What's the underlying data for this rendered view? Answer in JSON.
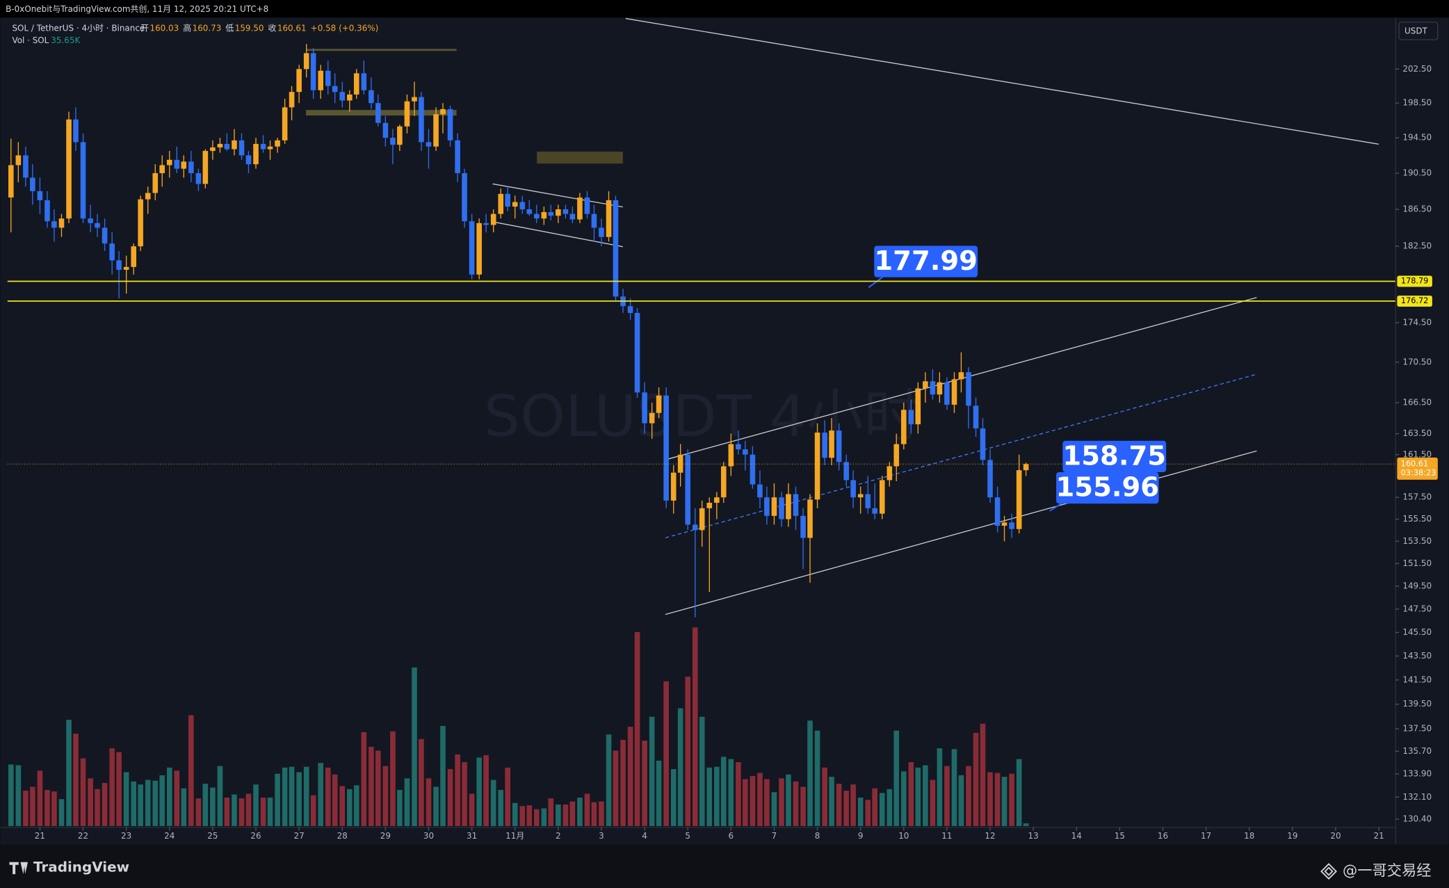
{
  "header": {
    "title": "B-0xOnebit与TradingView.com共创, 11月 12, 2025 20:21 UTC+8",
    "symbol": "SOL / TetherUS · 4小时 · Binance",
    "ohlc": [
      {
        "k": "开",
        "v": "160.03"
      },
      {
        "k": "高",
        "v": "160.73"
      },
      {
        "k": "低",
        "v": "159.50"
      },
      {
        "k": "收",
        "v": "160.61"
      }
    ],
    "change": "+0.58 (+0.36%)",
    "vol_name": "Vol · SOL",
    "vol_value": "35.65K",
    "currency": "USDT",
    "brand": "TradingView",
    "author": "@一哥交易经"
  },
  "chart_data": {
    "type": "candlestick",
    "watermark": "SOLUSDT 4小时",
    "log": true,
    "grid": false,
    "up_color": "#f5a623",
    "down_color": "#2f6ff0",
    "vol_up_color": "#1f6b68",
    "vol_down_color": "#8a2c37",
    "xlim": [
      -0.75,
      31.38
    ],
    "ylim": [
      129.8,
      208.6
    ],
    "xticks": [
      {
        "value": 0,
        "label": "21"
      },
      {
        "value": 1,
        "label": "22"
      },
      {
        "value": 2,
        "label": "23"
      },
      {
        "value": 3,
        "label": "24"
      },
      {
        "value": 4,
        "label": "25"
      },
      {
        "value": 5,
        "label": "26"
      },
      {
        "value": 6,
        "label": "27"
      },
      {
        "value": 7,
        "label": "28"
      },
      {
        "value": 8,
        "label": "29"
      },
      {
        "value": 9,
        "label": "30"
      },
      {
        "value": 10,
        "label": "31"
      },
      {
        "value": 11,
        "label": "11月"
      },
      {
        "value": 12,
        "label": "2"
      },
      {
        "value": 13,
        "label": "3"
      },
      {
        "value": 14,
        "label": "4"
      },
      {
        "value": 15,
        "label": "5"
      },
      {
        "value": 16,
        "label": "6"
      },
      {
        "value": 17,
        "label": "7"
      },
      {
        "value": 18,
        "label": "8"
      },
      {
        "value": 19,
        "label": "9"
      },
      {
        "value": 20,
        "label": "10"
      },
      {
        "value": 21,
        "label": "11"
      },
      {
        "value": 22,
        "label": "12"
      },
      {
        "value": 23,
        "label": "13"
      },
      {
        "value": 24,
        "label": "14"
      },
      {
        "value": 25,
        "label": "15"
      },
      {
        "value": 26,
        "label": "16"
      },
      {
        "value": 27,
        "label": "17"
      },
      {
        "value": 28,
        "label": "18"
      },
      {
        "value": 29,
        "label": "19"
      },
      {
        "value": 30,
        "label": "20"
      },
      {
        "value": 31,
        "label": "21"
      }
    ],
    "yticks": [
      {
        "value": 202.5,
        "label": "202.50"
      },
      {
        "value": 198.5,
        "label": "198.50"
      },
      {
        "value": 194.5,
        "label": "194.50"
      },
      {
        "value": 190.5,
        "label": "190.50"
      },
      {
        "value": 186.5,
        "label": "186.50"
      },
      {
        "value": 182.5,
        "label": "182.50"
      },
      {
        "value": 174.5,
        "label": "174.50"
      },
      {
        "value": 170.5,
        "label": "170.50"
      },
      {
        "value": 166.5,
        "label": "166.50"
      },
      {
        "value": 163.5,
        "label": "163.50"
      },
      {
        "value": 161.5,
        "label": "161.50"
      },
      {
        "value": 157.5,
        "label": "157.50"
      },
      {
        "value": 155.5,
        "label": "155.50"
      },
      {
        "value": 153.5,
        "label": "153.50"
      },
      {
        "value": 151.5,
        "label": "151.50"
      },
      {
        "value": 149.5,
        "label": "149.50"
      },
      {
        "value": 147.5,
        "label": "147.50"
      },
      {
        "value": 145.5,
        "label": "145.50"
      },
      {
        "value": 143.5,
        "label": "143.50"
      },
      {
        "value": 141.5,
        "label": "141.50"
      },
      {
        "value": 139.5,
        "label": "139.50"
      },
      {
        "value": 137.5,
        "label": "137.50"
      },
      {
        "value": 135.7,
        "label": "135.70"
      },
      {
        "value": 133.9,
        "label": "133.90"
      },
      {
        "value": 132.1,
        "label": "132.10"
      },
      {
        "value": 130.4,
        "label": "130.40"
      }
    ],
    "hlines": [
      {
        "value": 178.79,
        "color": "#f2e418"
      },
      {
        "value": 176.72,
        "color": "#f2e418"
      }
    ],
    "last_price": {
      "value": 160.61,
      "countdown": "03:38:23",
      "color": "#f5a623"
    },
    "callouts": [
      177.99,
      158.75,
      155.96
    ],
    "x": [
      -0.67,
      -0.5,
      -0.33,
      -0.17,
      0,
      0.17,
      0.33,
      0.5,
      0.67,
      0.83,
      1,
      1.17,
      1.33,
      1.5,
      1.67,
      1.83,
      2,
      2.17,
      2.33,
      2.5,
      2.67,
      2.83,
      3,
      3.17,
      3.33,
      3.5,
      3.67,
      3.83,
      4,
      4.17,
      4.33,
      4.5,
      4.67,
      4.83,
      5,
      5.17,
      5.33,
      5.5,
      5.67,
      5.83,
      6,
      6.17,
      6.33,
      6.5,
      6.67,
      6.83,
      7,
      7.17,
      7.33,
      7.5,
      7.67,
      7.83,
      8,
      8.17,
      8.33,
      8.5,
      8.67,
      8.83,
      9,
      9.17,
      9.33,
      9.5,
      9.67,
      9.83,
      10,
      10.17,
      10.33,
      10.5,
      10.67,
      10.83,
      11,
      11.17,
      11.33,
      11.5,
      11.67,
      11.83,
      12,
      12.17,
      12.33,
      12.5,
      12.67,
      12.83,
      13,
      13.17,
      13.33,
      13.5,
      13.67,
      13.83,
      14,
      14.17,
      14.33,
      14.5,
      14.67,
      14.83,
      15,
      15.17,
      15.33,
      15.5,
      15.67,
      15.83,
      16,
      16.17,
      16.33,
      16.5,
      16.67,
      16.83,
      17,
      17.17,
      17.33,
      17.5,
      17.67,
      17.83,
      18,
      18.17,
      18.33,
      18.5,
      18.67,
      18.83,
      19,
      19.17,
      19.33,
      19.5,
      19.67,
      19.83,
      20,
      20.17,
      20.33,
      20.5,
      20.67,
      20.83,
      21,
      21.17,
      21.33,
      21.5,
      21.67,
      21.83,
      22,
      22.17,
      22.33,
      22.5,
      22.67,
      22.83
    ],
    "open": [
      187.8,
      191.4,
      192.5,
      190,
      188.5,
      187.5,
      185.2,
      184.5,
      185.5,
      196.6,
      194,
      185.5,
      185,
      184.5,
      182.8,
      181,
      180,
      180.3,
      182.5,
      187.6,
      188.3,
      190.5,
      191.4,
      192,
      191,
      191.8,
      190.5,
      189.3,
      193,
      193.4,
      193.8,
      193.2,
      194.2,
      192.5,
      191.5,
      193.8,
      193.2,
      193.5,
      194.2,
      198,
      199.8,
      202.5,
      204.4,
      200,
      202.3,
      200.5,
      199.8,
      198.8,
      199.5,
      202,
      200,
      198.5,
      196.2,
      194.5,
      193.7,
      195.8,
      198.7,
      199.2,
      194,
      193.5,
      197.2,
      197.8,
      194.2,
      190.5,
      185.2,
      179.5,
      185,
      184.8,
      186,
      188.2,
      186.8,
      187.3,
      186.5,
      186,
      185.5,
      186.2,
      185.8,
      186.5,
      186,
      185.4,
      187.8,
      186,
      184.5,
      183.5,
      187.5,
      177.2,
      176.2,
      175.5,
      167.5,
      164.5,
      165.5,
      167.2,
      157.2,
      159.8,
      161.5,
      155,
      154.5,
      156.5,
      157,
      157.5,
      160.4,
      162.5,
      162,
      161.5,
      158.7,
      157.5,
      155.8,
      157.5,
      155.5,
      157.8,
      155.8,
      153.8,
      157.3,
      163.6,
      161.2,
      163.8,
      160.8,
      159.1,
      157.5,
      157.8,
      156.5,
      156,
      159.1,
      160.4,
      162.5,
      165.8,
      164.4,
      167.9,
      168.6,
      167.3,
      168.5,
      166.3,
      168.8,
      169.5,
      166.2,
      164,
      161,
      157.5,
      154.9,
      155.2,
      154.6,
      160.03
    ],
    "high": [
      194.4,
      194,
      193.5,
      191.5,
      190,
      188.5,
      186.5,
      186,
      197.5,
      198,
      195,
      187,
      186,
      185.5,
      184,
      182,
      181.5,
      182.8,
      188,
      189,
      191.5,
      192.5,
      193,
      193.5,
      192.5,
      193,
      191,
      193.2,
      194.2,
      194.5,
      195,
      195.5,
      195,
      193,
      194.5,
      194.8,
      194.2,
      194.5,
      199,
      200.5,
      203,
      205.5,
      205,
      203,
      203.5,
      202,
      201,
      200,
      202.5,
      203.5,
      201.5,
      199.5,
      197,
      195.5,
      196,
      199.5,
      201,
      199.8,
      195.5,
      198,
      198.5,
      198.2,
      195,
      191,
      186,
      185.5,
      186,
      186.5,
      188.8,
      189,
      188,
      188,
      187.5,
      187,
      186.8,
      187,
      187,
      187,
      186.8,
      188.3,
      188.5,
      187,
      185.5,
      188.5,
      188,
      178,
      177,
      176,
      168.5,
      166.5,
      168,
      168,
      160.5,
      162.5,
      162,
      156.5,
      157.2,
      157.5,
      158,
      160.8,
      163.5,
      163.8,
      162.8,
      162.3,
      160,
      158.5,
      158.8,
      158,
      158.8,
      158.5,
      156.5,
      157.8,
      164.5,
      164.8,
      165,
      164.5,
      161.5,
      160,
      158.5,
      159.5,
      158.8,
      159.5,
      160.8,
      163.5,
      166.5,
      166.8,
      168.5,
      169.5,
      169.8,
      169.5,
      169,
      169.5,
      171.5,
      170,
      167,
      165,
      162,
      158.5,
      155.8,
      156,
      161.5,
      160.73
    ],
    "low": [
      184,
      189.5,
      189,
      187,
      186,
      184.5,
      183,
      183.5,
      185,
      193,
      185,
      184,
      183.5,
      182,
      179.5,
      177,
      177.5,
      179.5,
      182,
      186,
      187.5,
      189,
      190,
      190.5,
      190,
      189.5,
      188.5,
      188.8,
      192,
      192.8,
      193,
      192.5,
      192,
      190.5,
      191,
      192.8,
      192,
      192.8,
      193.8,
      196.5,
      198.5,
      201.5,
      199,
      199,
      199.5,
      198.5,
      198,
      197.5,
      199,
      199.5,
      197.8,
      195.8,
      193.5,
      191.5,
      193,
      195,
      197,
      193,
      191,
      193,
      195,
      193.5,
      189.5,
      184.5,
      179,
      179,
      184,
      184,
      185.5,
      186.3,
      185.5,
      186,
      185.8,
      185,
      184.8,
      185.3,
      185,
      185.5,
      185,
      185,
      185.5,
      183,
      182.5,
      183,
      176.8,
      175.5,
      174.8,
      167,
      163.5,
      163,
      165,
      156.5,
      156,
      158.5,
      154.5,
      146.8,
      153,
      149,
      155.5,
      157,
      159.5,
      161.5,
      160,
      158.3,
      156.5,
      155,
      155,
      154.8,
      154.8,
      154.5,
      151,
      149.8,
      156.5,
      160.5,
      160.5,
      160,
      158.5,
      156.5,
      156,
      156,
      155.5,
      155.5,
      158.5,
      159,
      162,
      163.5,
      163.5,
      166.5,
      166.8,
      166.5,
      165.8,
      165.5,
      167.5,
      164,
      163.2,
      160.5,
      157,
      154.3,
      153.5,
      153.8,
      154.2,
      159.5
    ],
    "close": [
      191.4,
      192.5,
      190,
      188.5,
      187.5,
      185.2,
      184.5,
      185.5,
      196.6,
      194,
      185.5,
      185,
      184.5,
      182.8,
      181,
      180,
      180.3,
      182.5,
      187.6,
      188.3,
      190.5,
      191.4,
      192,
      191,
      191.8,
      190.5,
      189.3,
      193,
      193.4,
      193.8,
      193.2,
      194.2,
      192.5,
      191.5,
      193.8,
      193.2,
      193.5,
      194.2,
      198,
      199.8,
      202.5,
      204.4,
      200,
      202.3,
      200.5,
      199.8,
      198.8,
      199.5,
      202,
      200,
      198.5,
      196.2,
      194.5,
      193.7,
      195.8,
      198.7,
      199.2,
      194,
      193.5,
      197.2,
      197.8,
      194.2,
      190.5,
      185.2,
      179.5,
      185,
      184.8,
      186,
      188.2,
      186.8,
      187.3,
      186.5,
      186,
      185.5,
      186.2,
      185.8,
      186.5,
      186,
      185.4,
      187.8,
      186,
      184.5,
      183.5,
      187.5,
      177.2,
      176.2,
      175.5,
      167.5,
      164.5,
      165.5,
      167.2,
      157.2,
      159.8,
      161.5,
      155,
      154.5,
      156.5,
      157,
      157.5,
      160.4,
      162.5,
      162,
      161.5,
      158.7,
      157.5,
      155.8,
      157.5,
      155.5,
      157.8,
      155.8,
      153.8,
      157.3,
      163.6,
      161.2,
      163.8,
      160.8,
      159.1,
      157.5,
      157.8,
      156.5,
      156,
      159.1,
      160.4,
      162.5,
      165.8,
      164.4,
      167.9,
      168.6,
      167.3,
      168.5,
      166.3,
      168.8,
      169.5,
      166.2,
      164,
      161,
      157.5,
      154.9,
      155.2,
      154.6,
      160.03,
      160.61
    ],
    "volume": [
      800,
      790,
      460,
      510,
      720,
      470,
      450,
      350,
      1380,
      1200,
      880,
      620,
      480,
      560,
      1010,
      960,
      700,
      580,
      540,
      600,
      590,
      660,
      760,
      720,
      490,
      1440,
      360,
      550,
      500,
      780,
      370,
      410,
      360,
      420,
      540,
      370,
      370,
      680,
      760,
      770,
      700,
      770,
      400,
      820,
      760,
      670,
      520,
      480,
      530,
      1220,
      1030,
      980,
      780,
      1230,
      470,
      620,
      2060,
      1130,
      620,
      510,
      1300,
      740,
      930,
      830,
      420,
      890,
      920,
      600,
      470,
      760,
      300,
      260,
      270,
      220,
      230,
      360,
      280,
      280,
      320,
      370,
      420,
      310,
      320,
      1190,
      980,
      1120,
      1290,
      2520,
      1110,
      1420,
      850,
      1880,
      740,
      1530,
      1940,
      2580,
      1420,
      760,
      770,
      900,
      870,
      830,
      610,
      650,
      690,
      610,
      440,
      620,
      670,
      580,
      510,
      1370,
      1240,
      760,
      640,
      550,
      460,
      540,
      370,
      340,
      490,
      430,
      480,
      1240,
      710,
      830,
      760,
      790,
      600,
      1010,
      780,
      1000,
      660,
      780,
      1210,
      1330,
      700,
      690,
      640,
      680,
      870,
      35.65
    ]
  }
}
